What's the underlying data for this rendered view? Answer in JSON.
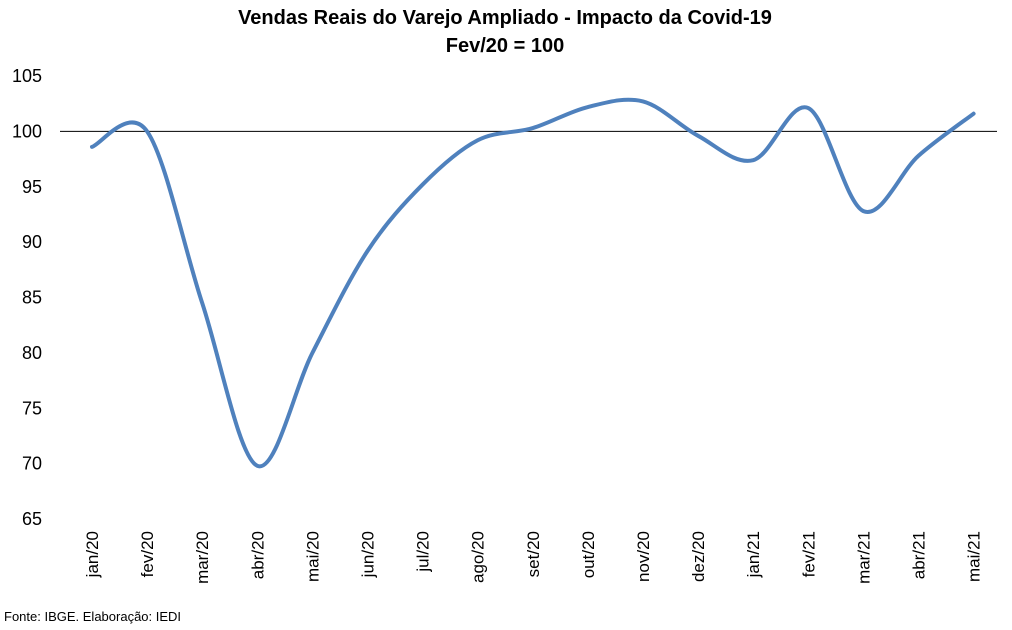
{
  "chart_data": {
    "type": "line",
    "title": "Vendas Reais do Varejo Ampliado - Impacto da Covid-19",
    "subtitle": "Fev/20 = 100",
    "categories": [
      "jan/20",
      "fev/20",
      "mar/20",
      "abr/20",
      "mai/20",
      "jun/20",
      "jul/20",
      "ago/20",
      "set/20",
      "out/20",
      "nov/20",
      "dez/20",
      "jan/21",
      "fev/21",
      "mar/21",
      "abr/21",
      "mai/21"
    ],
    "series": [
      {
        "values": [
          98.6,
          100.0,
          84.5,
          69.8,
          80.0,
          89.2,
          95.2,
          99.2,
          100.3,
          102.2,
          102.7,
          99.6,
          97.4,
          102.1,
          92.8,
          97.8,
          101.6
        ]
      }
    ],
    "ylim": [
      65,
      105
    ],
    "yticks": [
      65,
      70,
      75,
      80,
      85,
      90,
      95,
      100,
      105
    ],
    "reference_line": 100,
    "line_color": "#4f81bd",
    "source": "Fonte: IBGE. Elaboração: IEDI"
  }
}
